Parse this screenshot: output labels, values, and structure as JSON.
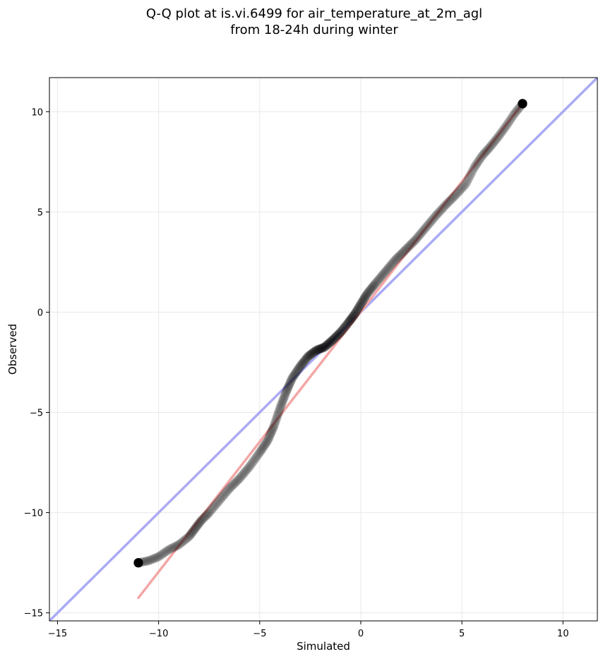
{
  "chart_data": {
    "type": "scatter",
    "title_lines": [
      "Q-Q plot at is.vi.6499 for air_temperature_at_2m_agl",
      "from 18-24h during winter"
    ],
    "xlabel": "Simulated",
    "ylabel": "Observed",
    "xlim": [
      -15.4,
      11.7
    ],
    "ylim": [
      -15.4,
      11.7
    ],
    "xticks": [
      -15,
      -10,
      -5,
      0,
      5,
      10
    ],
    "yticks": [
      -15,
      -10,
      -5,
      0,
      5,
      10
    ],
    "grid": true,
    "colors": {
      "points": "#000000",
      "identity_line": "#aaaaf4",
      "fit_line": "#f4a6a6",
      "grid": "#e8e8e8"
    },
    "identity_line": {
      "name": "",
      "x": [
        -15.4,
        11.7
      ],
      "y": [
        -15.4,
        11.7
      ]
    },
    "fit_line": {
      "name": "",
      "x": [
        -11.0,
        8.0
      ],
      "y": [
        -14.25,
        10.4
      ]
    },
    "quantile_curve": {
      "x": [
        -11.0,
        -10.5,
        -10.0,
        -9.5,
        -9.0,
        -8.5,
        -8.2,
        -7.9,
        -7.5,
        -7.0,
        -6.5,
        -6.0,
        -5.5,
        -5.0,
        -4.6,
        -4.3,
        -4.0,
        -3.7,
        -3.4,
        -3.0,
        -2.6,
        -2.2,
        -1.8,
        -1.4,
        -1.0,
        -0.6,
        -0.3,
        0.0,
        0.3,
        0.7,
        1.2,
        1.7,
        2.2,
        2.7,
        3.2,
        3.7,
        4.2,
        4.7,
        5.2,
        5.6,
        6.0,
        6.4,
        6.8,
        7.2,
        7.6,
        8.0
      ],
      "y": [
        -12.5,
        -12.4,
        -12.2,
        -11.85,
        -11.6,
        -11.2,
        -10.8,
        -10.4,
        -10.0,
        -9.4,
        -8.8,
        -8.3,
        -7.7,
        -7.0,
        -6.4,
        -5.7,
        -4.8,
        -4.0,
        -3.3,
        -2.7,
        -2.2,
        -1.9,
        -1.75,
        -1.4,
        -1.0,
        -0.5,
        -0.1,
        0.4,
        0.9,
        1.4,
        2.0,
        2.6,
        3.1,
        3.6,
        4.2,
        4.8,
        5.35,
        5.85,
        6.4,
        7.2,
        7.8,
        8.25,
        8.75,
        9.3,
        9.9,
        10.4
      ]
    },
    "point_count": 520
  }
}
